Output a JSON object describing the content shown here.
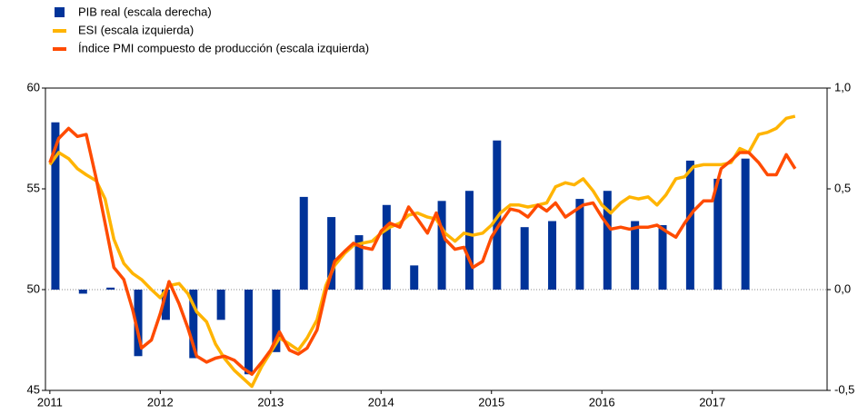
{
  "chart_data": {
    "type": "bar-line",
    "x": [
      2011,
      2011.08,
      2011.17,
      2011.25,
      2011.33,
      2011.42,
      2011.5,
      2011.58,
      2011.67,
      2011.75,
      2011.83,
      2011.92,
      2012,
      2012.08,
      2012.17,
      2012.25,
      2012.33,
      2012.42,
      2012.5,
      2012.58,
      2012.67,
      2012.75,
      2012.83,
      2012.92,
      2013,
      2013.08,
      2013.17,
      2013.25,
      2013.33,
      2013.42,
      2013.5,
      2013.58,
      2013.67,
      2013.75,
      2013.83,
      2013.92,
      2014,
      2014.08,
      2014.17,
      2014.25,
      2014.33,
      2014.42,
      2014.5,
      2014.58,
      2014.67,
      2014.75,
      2014.83,
      2014.92,
      2015,
      2015.08,
      2015.17,
      2015.25,
      2015.33,
      2015.42,
      2015.5,
      2015.58,
      2015.67,
      2015.75,
      2015.83,
      2015.92,
      2016,
      2016.08,
      2016.17,
      2016.25,
      2016.33,
      2016.42,
      2016.5,
      2016.58,
      2016.67,
      2016.75,
      2016.83,
      2016.92,
      2017,
      2017.08,
      2017.17,
      2017.25,
      2017.33,
      2017.42,
      2017.5,
      2017.58,
      2017.67,
      2017.75
    ],
    "series": [
      {
        "name": "PIB real (escala derecha)",
        "type": "bar",
        "axis": "y2",
        "color": "#003399",
        "x": [
          2011.05,
          2011.3,
          2011.55,
          2011.8,
          2012.05,
          2012.3,
          2012.55,
          2012.8,
          2013.05,
          2013.3,
          2013.55,
          2013.8,
          2014.05,
          2014.3,
          2014.55,
          2014.8,
          2015.05,
          2015.3,
          2015.55,
          2015.8,
          2016.05,
          2016.3,
          2016.55,
          2016.8,
          2017.05,
          2017.3
        ],
        "values": [
          0.83,
          -0.02,
          0.01,
          -0.33,
          -0.15,
          -0.34,
          -0.15,
          -0.42,
          -0.31,
          0.46,
          0.36,
          0.27,
          0.42,
          0.12,
          0.44,
          0.49,
          0.74,
          0.31,
          0.34,
          0.45,
          0.49,
          0.34,
          0.32,
          0.64,
          0.55,
          0.65
        ]
      },
      {
        "name": "ESI (escala izquierda)",
        "type": "line",
        "color": "#ffb400",
        "values": [
          56.2,
          56.8,
          56.5,
          56.0,
          55.7,
          55.4,
          54.5,
          52.5,
          51.3,
          50.8,
          50.5,
          50.0,
          49.6,
          50.2,
          50.3,
          49.8,
          48.9,
          48.4,
          47.3,
          46.6,
          46.0,
          45.6,
          45.2,
          46.2,
          46.9,
          47.6,
          47.3,
          47.0,
          47.6,
          48.5,
          50.2,
          51.2,
          51.8,
          52.2,
          52.3,
          52.4,
          52.8,
          53.1,
          53.3,
          53.7,
          53.8,
          53.6,
          53.5,
          52.8,
          52.4,
          52.8,
          52.7,
          52.8,
          53.2,
          53.8,
          54.2,
          54.2,
          54.1,
          54.2,
          54.3,
          55.1,
          55.3,
          55.2,
          55.5,
          54.9,
          54.2,
          53.8,
          54.3,
          54.6,
          54.5,
          54.6,
          54.2,
          54.7,
          55.5,
          55.6,
          56.1,
          56.2,
          56.2,
          56.2,
          56.3,
          57.0,
          56.8,
          57.7,
          57.8,
          58.0,
          58.5,
          58.6
        ]
      },
      {
        "name": "Índice PMI compuesto de producción (escala izquierda)",
        "type": "line",
        "color": "#ff4b00",
        "values": [
          56.3,
          57.5,
          58.0,
          57.6,
          57.7,
          55.5,
          53.3,
          51.1,
          50.5,
          49.0,
          47.1,
          47.5,
          48.8,
          50.4,
          49.3,
          48.1,
          46.7,
          46.4,
          46.6,
          46.7,
          46.5,
          46.1,
          45.8,
          46.4,
          47.0,
          47.9,
          47.0,
          46.8,
          47.1,
          48.0,
          49.9,
          51.4,
          51.9,
          52.3,
          52.1,
          52.0,
          52.9,
          53.3,
          53.1,
          54.1,
          53.5,
          52.8,
          53.8,
          52.5,
          52.0,
          52.1,
          51.1,
          51.4,
          52.6,
          53.3,
          54.0,
          53.9,
          53.6,
          54.2,
          53.9,
          54.3,
          53.6,
          53.9,
          54.2,
          54.3,
          53.6,
          53.0,
          53.1,
          53.0,
          53.1,
          53.1,
          53.2,
          52.9,
          52.6,
          53.3,
          53.9,
          54.4,
          54.4,
          56.0,
          56.4,
          56.8,
          56.8,
          56.3,
          55.7,
          55.7,
          56.7,
          56.0
        ]
      }
    ],
    "xlim": [
      2010.96,
      2018.04
    ],
    "xticks": [
      2011,
      2012,
      2013,
      2014,
      2015,
      2016,
      2017
    ],
    "ylim": [
      45,
      60
    ],
    "yticks": [
      45,
      50,
      55,
      60
    ],
    "y2lim": [
      -0.5,
      1
    ],
    "y2ticks": [
      {
        "value": -0.5,
        "label": "-0,5"
      },
      {
        "value": 0,
        "label": "0,0"
      },
      {
        "value": 0.5,
        "label": "0,5"
      },
      {
        "value": 1,
        "label": "1,0"
      }
    ],
    "legend": "top-left"
  }
}
